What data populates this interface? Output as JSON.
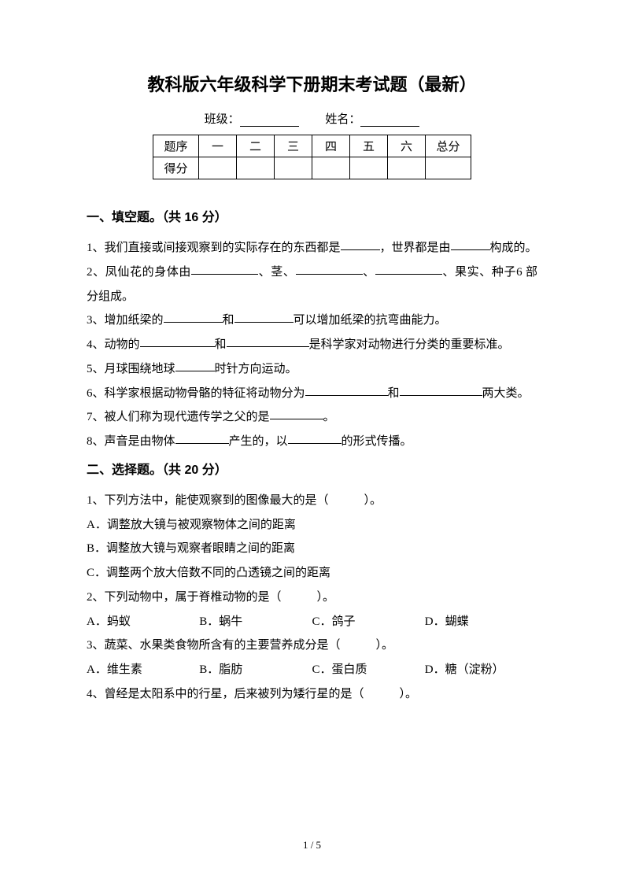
{
  "title": "教科版六年级科学下册期末考试题（最新）",
  "form": {
    "class_label": "班级：",
    "name_label": "姓名："
  },
  "table": {
    "header": [
      "题序",
      "一",
      "二",
      "三",
      "四",
      "五",
      "六",
      "总分"
    ],
    "row2_label": "得分"
  },
  "section1": {
    "heading": "一、填空题。（共 16 分）",
    "q1a": "1、我们直接或间接观察到的实际存在的东西都是",
    "q1b": "，世界都是由",
    "q1c": "构成的。",
    "q2a": "2、凤仙花的身体由",
    "q2b": "、茎、",
    "q2c": "、",
    "q2d": "、果实、种子",
    "q2e": "6 部分组成。",
    "q3a": "3、增加纸梁的",
    "q3b": "和",
    "q3c": "可以增加纸梁的抗弯曲能力。",
    "q4a": "4、动物的",
    "q4b": "和",
    "q4c": "是科学家对动物进行分类的重要",
    "q4d": "标准。",
    "q5a": "5、月球围绕地球",
    "q5b": "时针方向运动。",
    "q6a": "6、科学家根据动物骨骼的特征将动物分为",
    "q6b": "和",
    "q6c": "两大",
    "q6d": "类。",
    "q7a": "7、被人们称为现代遗传学之父的是",
    "q7b": "。",
    "q8a": "8、声音是由物体",
    "q8b": "产生的，以",
    "q8c": "的形式传播。"
  },
  "section2": {
    "heading": "二、选择题。（共 20 分）",
    "q1": "1、下列方法中，能使观察到的图像最大的是（　　　）。",
    "q1a": "A．调整放大镜与被观察物体之间的距离",
    "q1b": "B．调整放大镜与观察者眼睛之间的距离",
    "q1c": "C．调整两个放大倍数不同的凸透镜之间的距离",
    "q2": "2、下列动物中，属于脊椎动物的是（　　　）。",
    "q2a": "A．蚂蚁",
    "q2b": "B．蜗牛",
    "q2c": "C．鸽子",
    "q2d": "D．蝴蝶",
    "q3": "3、蔬菜、水果类食物所含有的主要营养成分是（　　　）。",
    "q3a": "A．维生素",
    "q3b": "B．脂肪",
    "q3c": "C．蛋白质",
    "q3d": "D．糖（淀粉）",
    "q4": "4、曾经是太阳系中的行星，后来被列为矮行星的是（　　　）。"
  },
  "page_num": "1 / 5"
}
